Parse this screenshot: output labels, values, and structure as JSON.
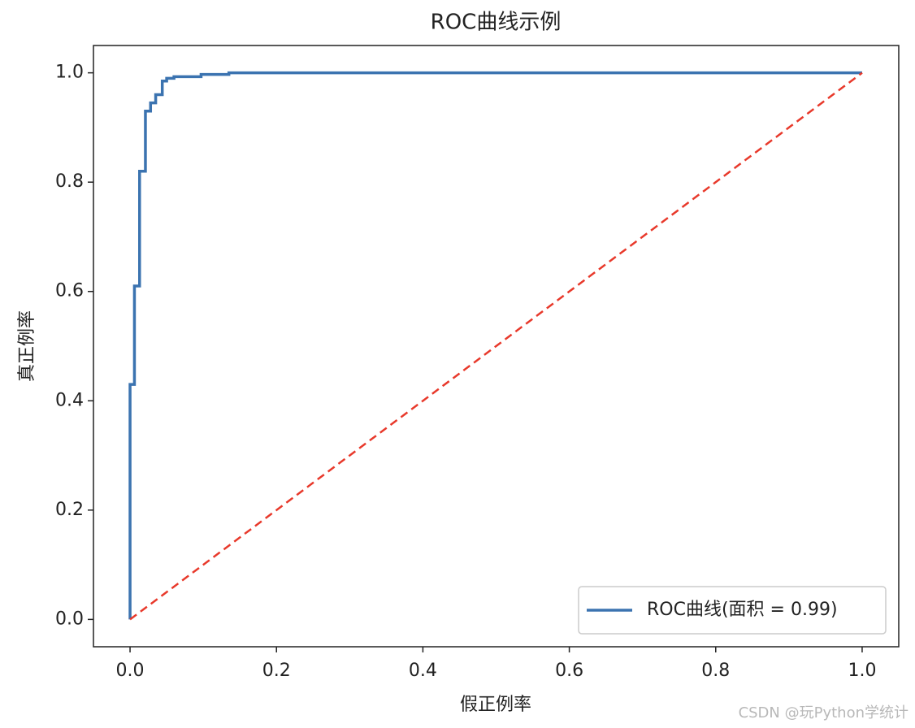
{
  "chart_data": {
    "type": "line",
    "title": "ROC曲线示例",
    "xlabel": "假正例率",
    "ylabel": "真正例率",
    "xlim": [
      -0.05,
      1.05
    ],
    "ylim": [
      -0.05,
      1.05
    ],
    "xticks": [
      {
        "value": 0,
        "label": "0.0"
      },
      0.2,
      0.4,
      0.6,
      0.8,
      {
        "value": 1,
        "label": "1.0"
      }
    ],
    "yticks": [
      {
        "value": 0,
        "label": "0.0"
      },
      0.2,
      0.4,
      0.6,
      0.8,
      {
        "value": 1,
        "label": "1.0"
      }
    ],
    "grid": false,
    "legend": "lower right",
    "series": [
      {
        "name": "ROC曲线(面积 = 0.99)",
        "color": "#3b73b0",
        "dash": false,
        "x": [
          0,
          0,
          0.006,
          0.006,
          0.013,
          0.013,
          0.021,
          0.021,
          0.028,
          0.028,
          0.035,
          0.035,
          0.044,
          0.044,
          0.05,
          0.05,
          0.06,
          0.06,
          0.097,
          0.097,
          0.135,
          0.135,
          1
        ],
        "values": [
          0,
          0.43,
          0.43,
          0.61,
          0.61,
          0.82,
          0.82,
          0.93,
          0.93,
          0.945,
          0.945,
          0.96,
          0.96,
          0.985,
          0.985,
          0.99,
          0.99,
          0.993,
          0.993,
          0.997,
          0.997,
          1,
          1
        ]
      },
      {
        "color": "#e8392b",
        "dash": true,
        "x": [
          0,
          1
        ],
        "values": [
          0,
          1
        ]
      }
    ]
  },
  "watermark": "CSDN @玩Python学统计"
}
